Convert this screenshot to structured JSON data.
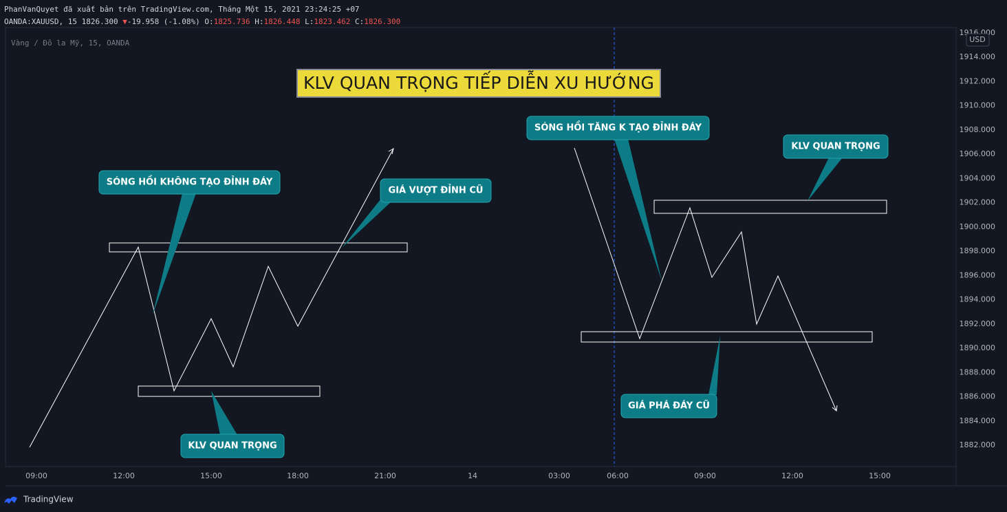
{
  "header": {
    "publisher_line": "PhanVanQuyet đã xuất bản trên TradingView.com, Tháng Một 15, 2021 23:24:25 +07",
    "symbol": "OANDA:XAUUSD, 15",
    "last": "1826.300",
    "change": "-19.958 (-1.08%)",
    "open_label": "O:",
    "open": "1825.736",
    "high_label": "H:",
    "high": "1826.448",
    "low_label": "L:",
    "low": "1823.462",
    "close_label": "C:",
    "close": "1826.300"
  },
  "instrument": "Vàng / Đô la Mỹ, 15, OANDA",
  "title": "KLV QUAN TRỌNG TIẾP DIỄN XU HƯỚNG",
  "callouts": [
    "SÓNG HỒI KHÔNG TẠO ĐỈNH ĐÁY",
    "GIÁ VƯỢT ĐỈNH CŨ",
    "KLV QUAN TRỌNG",
    "SÓNG HỒI TĂNG K TẠO ĐỈNH ĐÁY",
    "KLV QUAN TRỌNG",
    "GIÁ PHÁ ĐÁY CŨ"
  ],
  "price_axis": {
    "currency": "USD",
    "ticks": [
      "1916.000",
      "1914.000",
      "1912.000",
      "1910.000",
      "1908.000",
      "1906.000",
      "1904.000",
      "1902.000",
      "1900.000",
      "1898.000",
      "1896.000",
      "1894.000",
      "1892.000",
      "1890.000",
      "1888.000",
      "1886.000",
      "1884.000",
      "1882.000"
    ]
  },
  "time_axis": {
    "labels": [
      "09:00",
      "12:00",
      "15:00",
      "18:00",
      "21:00",
      "14",
      "03:00",
      "06:00",
      "09:00",
      "12:00",
      "15:00"
    ]
  },
  "footer": {
    "brand": "TradingView"
  }
}
